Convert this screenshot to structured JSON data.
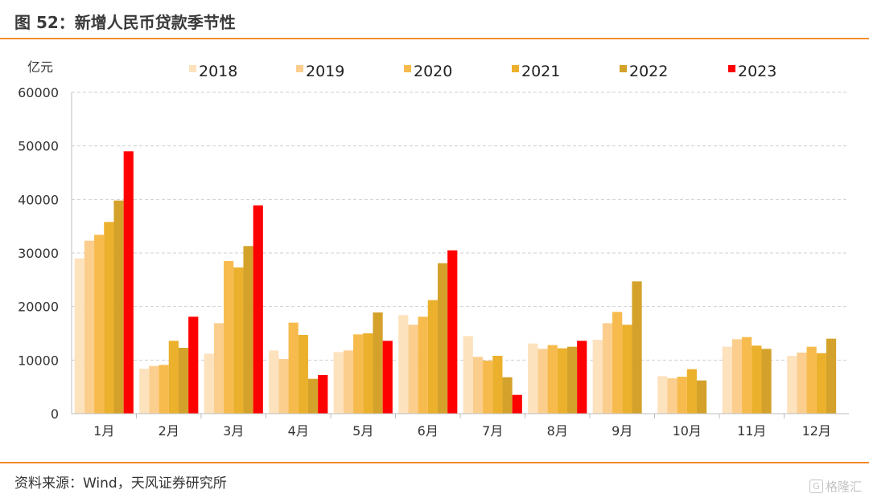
{
  "figure": {
    "title": "图 52：新增人民币贷款季节性"
  },
  "source": "资料来源：Wind，天风证券研究所",
  "watermark": {
    "icon": "watermark-logo-icon",
    "box_glyph": "G",
    "text": "格隆汇"
  },
  "colors": {
    "accent": "#f28c2b",
    "series": [
      "#fde2be",
      "#fbce8e",
      "#f7bb4d",
      "#ebb02c",
      "#d4a22a",
      "#ff0000"
    ]
  },
  "chart_data": {
    "type": "bar",
    "ylabel": "亿元",
    "ylim": [
      0,
      60000
    ],
    "yticks": [
      0,
      10000,
      20000,
      30000,
      40000,
      50000,
      60000
    ],
    "grid": "horizontal-dashed",
    "legend_position": "top",
    "categories": [
      "1月",
      "2月",
      "3月",
      "4月",
      "5月",
      "6月",
      "7月",
      "8月",
      "9月",
      "10月",
      "11月",
      "12月"
    ],
    "series": [
      {
        "name": "2018",
        "values": [
          29000,
          8400,
          11200,
          11800,
          11500,
          18400,
          14500,
          13100,
          13800,
          7000,
          12500,
          10800
        ]
      },
      {
        "name": "2019",
        "values": [
          32300,
          8900,
          16900,
          10200,
          11800,
          16600,
          10600,
          12100,
          16900,
          6600,
          13900,
          11400
        ]
      },
      {
        "name": "2020",
        "values": [
          33400,
          9100,
          28500,
          17000,
          14800,
          18100,
          9900,
          12800,
          19000,
          6900,
          14300,
          12500
        ]
      },
      {
        "name": "2021",
        "values": [
          35800,
          13600,
          27300,
          14700,
          15000,
          21200,
          10800,
          12200,
          16600,
          8300,
          12700,
          11300
        ]
      },
      {
        "name": "2022",
        "values": [
          39800,
          12300,
          31300,
          6500,
          18900,
          28100,
          6800,
          12500,
          24700,
          6200,
          12100,
          14000
        ]
      },
      {
        "name": "2023",
        "values": [
          49000,
          18100,
          38900,
          7200,
          13600,
          30500,
          3500,
          13600,
          null,
          null,
          null,
          null
        ]
      }
    ]
  }
}
